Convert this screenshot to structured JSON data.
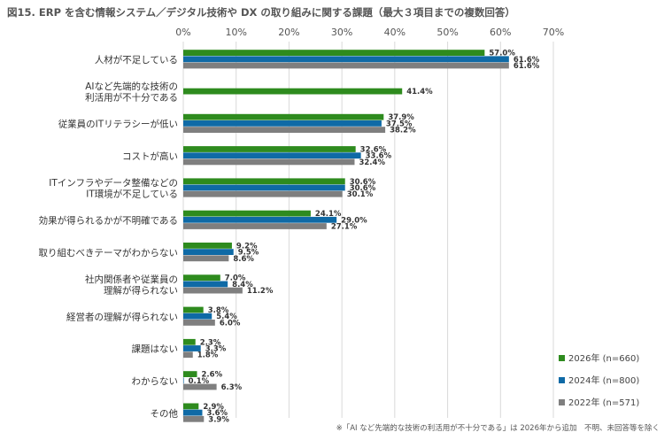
{
  "chart_data": {
    "type": "bar",
    "orientation": "horizontal",
    "title": "図15. ERP を含む情報システム／デジタル技術や DX の取り組みに関する課題（最大３項目までの複数回答）",
    "note": "※「AI など先端的な技術の利活用が不十分である」は 2026年から追加　不明、未回答等を除く",
    "x_range": [
      0,
      70
    ],
    "x_ticks": [
      "0%",
      "10%",
      "20%",
      "30%",
      "40%",
      "50%",
      "60%",
      "70%"
    ],
    "grid": true,
    "legend_position": "bottom-right",
    "categories": [
      "人材が不足している",
      "AIなど先端的な技術の\n利活用が不十分である",
      "従業員のITリテラシーが低い",
      "コストが高い",
      "ITインフラやデータ整備などの\nIT環境が不足している",
      "効果が得られるかが不明確である",
      "取り組むべきテーマがわからない",
      "社内関係者や従業員の\n理解が得られない",
      "経営者の理解が得られない",
      "課題はない",
      "わからない",
      "その他"
    ],
    "series": [
      {
        "name": "2026年 (n=660)",
        "color": "#2e8b1e",
        "values": [
          57.0,
          41.4,
          37.9,
          32.6,
          30.6,
          24.1,
          9.2,
          7.0,
          3.8,
          2.3,
          2.6,
          2.9
        ]
      },
      {
        "name": "2024年 (n=800)",
        "color": "#0f6aa6",
        "values": [
          61.6,
          null,
          37.5,
          33.6,
          30.6,
          29.0,
          9.5,
          8.4,
          5.4,
          3.3,
          0.1,
          3.6
        ]
      },
      {
        "name": "2022年 (n=571)",
        "color": "#7f7f7f",
        "values": [
          61.6,
          null,
          38.2,
          32.4,
          30.1,
          27.1,
          8.6,
          11.2,
          6.0,
          1.8,
          6.3,
          3.9
        ]
      }
    ]
  }
}
